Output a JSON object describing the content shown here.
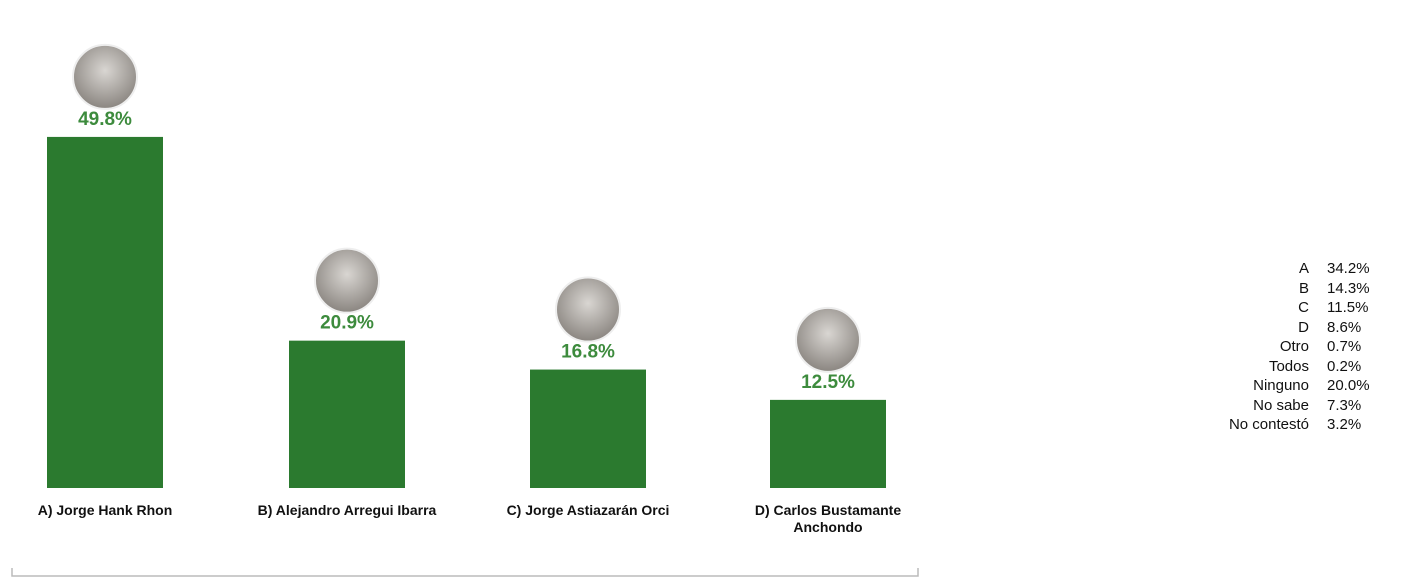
{
  "chart_data": {
    "type": "bar",
    "categories": [
      "A) Jorge Hank Rhon",
      "B) Alejandro Arregui Ibarra",
      "C) Jorge Astiazarán Orci",
      "D) Carlos Bustamante Anchondo"
    ],
    "values": [
      49.8,
      20.9,
      16.8,
      12.5
    ],
    "value_labels": [
      "49.8%",
      "20.9%",
      "16.8%",
      "12.5%"
    ],
    "color": "#2b7a2f",
    "summary": [
      {
        "label": "A",
        "value": "34.2%"
      },
      {
        "label": "B",
        "value": "14.3%"
      },
      {
        "label": "C",
        "value": "11.5%"
      },
      {
        "label": "D",
        "value": "8.6%"
      },
      {
        "label": "Otro",
        "value": "0.7%"
      },
      {
        "label": "Todos",
        "value": "0.2%"
      },
      {
        "label": "Ninguno",
        "value": "20.0%"
      },
      {
        "label": "No sabe",
        "value": "7.3%"
      },
      {
        "label": "No contestó",
        "value": "3.2%"
      }
    ]
  }
}
